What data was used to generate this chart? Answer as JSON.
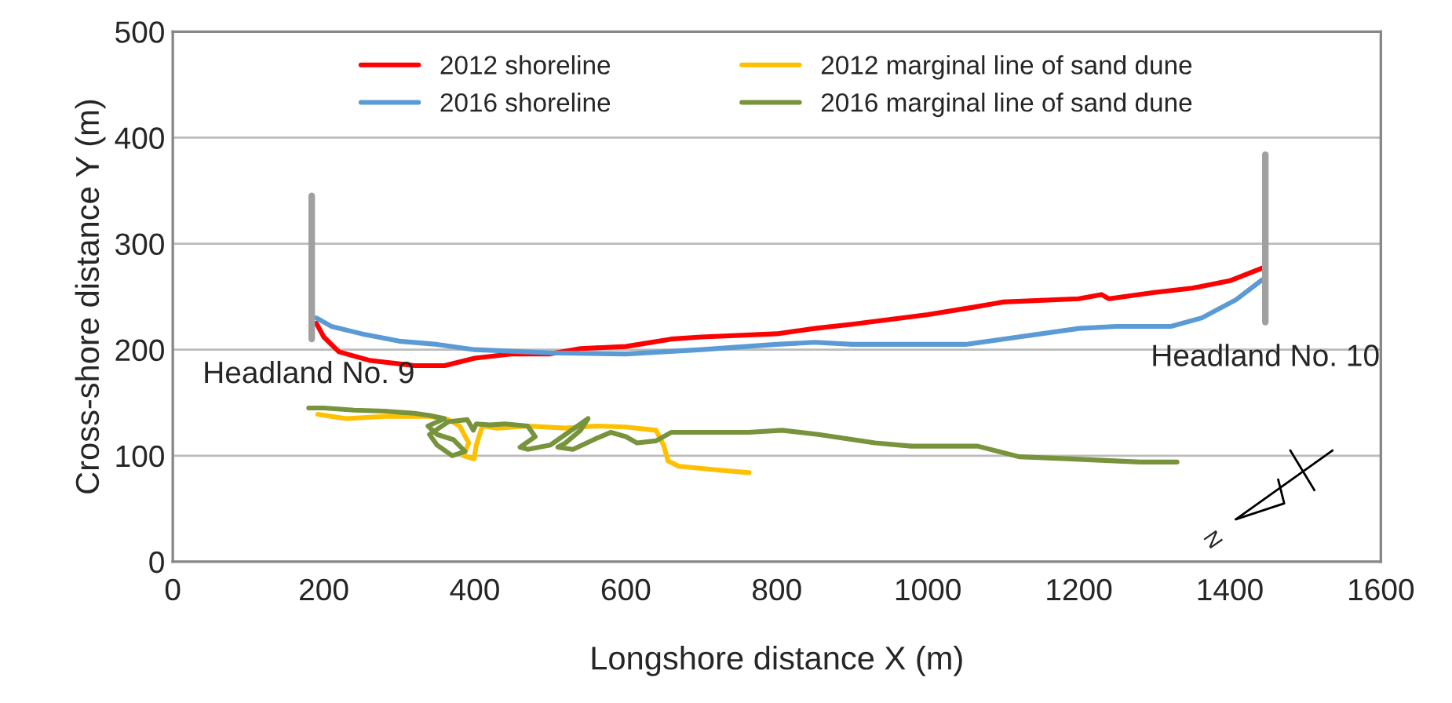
{
  "chart_data": {
    "type": "line",
    "xlabel": "Longshore distance X (m)",
    "ylabel": "Cross-shore distance Y (m)",
    "xlim": [
      0,
      1600
    ],
    "xticks": [
      0,
      200,
      400,
      600,
      800,
      1000,
      1200,
      1400,
      1600
    ],
    "ylim": [
      0,
      500
    ],
    "yticks": [
      0,
      100,
      200,
      300,
      400,
      500
    ],
    "grid": "y",
    "legend": "top",
    "marker": "none",
    "line_style": "solid",
    "series": [
      {
        "name": "2012 shoreline",
        "color": "#ff0000",
        "x": [
          190,
          200,
          220,
          260,
          320,
          360,
          400,
          450,
          500,
          540,
          600,
          660,
          700,
          800,
          850,
          900,
          1000,
          1060,
          1100,
          1200,
          1230,
          1240,
          1300,
          1350,
          1400,
          1443
        ],
        "values": [
          225,
          212,
          198,
          190,
          185,
          185,
          192,
          196,
          196,
          201,
          203,
          210,
          212,
          215,
          220,
          224,
          233,
          240,
          245,
          248,
          252,
          248,
          254,
          258,
          265,
          277
        ]
      },
      {
        "name": "2016 shoreline",
        "color": "#5b9bd5",
        "x": [
          190,
          210,
          250,
          300,
          350,
          400,
          500,
          600,
          650,
          700,
          800,
          850,
          900,
          1050,
          1100,
          1200,
          1250,
          1322,
          1363,
          1408,
          1443
        ],
        "values": [
          230,
          222,
          215,
          208,
          205,
          200,
          197,
          196,
          198,
          200,
          205,
          207,
          205,
          205,
          210,
          220,
          222,
          222,
          230,
          247,
          266
        ]
      },
      {
        "name": "2012 marginal line of sand dune",
        "color": "#ffc000",
        "x": [
          192,
          210,
          230,
          280,
          340,
          365,
          380,
          392,
          385,
          399,
          402,
          410,
          430,
          470,
          520,
          560,
          600,
          640,
          650,
          656,
          670,
          700,
          730,
          763
        ],
        "values": [
          139,
          137,
          135,
          137,
          137,
          134,
          128,
          112,
          100,
          97,
          110,
          128,
          126,
          128,
          126,
          128,
          127,
          124,
          110,
          95,
          90,
          88,
          86,
          84
        ]
      },
      {
        "name": "2016 marginal line of sand dune",
        "color": "#77933c",
        "x": [
          180,
          200,
          240,
          280,
          320,
          340,
          360,
          338,
          350,
          372,
          387,
          370,
          350,
          340,
          365,
          390,
          398,
          402,
          420,
          440,
          470,
          480,
          460,
          470,
          500,
          520,
          540,
          550,
          540,
          520,
          510,
          530,
          560,
          580,
          600,
          615,
          640,
          660,
          700,
          763,
          807,
          855,
          930,
          978,
          1066,
          1121,
          1189,
          1281,
          1330
        ],
        "values": [
          145,
          145,
          143,
          142,
          140,
          138,
          135,
          128,
          120,
          115,
          104,
          100,
          110,
          120,
          132,
          134,
          124,
          130,
          129,
          130,
          128,
          118,
          108,
          106,
          110,
          120,
          130,
          135,
          124,
          112,
          108,
          106,
          116,
          122,
          118,
          112,
          114,
          122,
          122,
          122,
          124,
          120,
          112,
          109,
          109,
          99,
          97,
          94,
          94
        ]
      },
      {
        "color": "#a0a0a0",
        "x": [
          184,
          184
        ],
        "values": [
          210,
          345
        ]
      },
      {
        "color": "#a0a0a0",
        "x": [
          1447,
          1447
        ],
        "values": [
          226,
          384
        ]
      }
    ],
    "annotations": [
      {
        "text": "Headland No. 9",
        "x": 180,
        "y": 210
      },
      {
        "text": "Headland No. 10",
        "x": 1447,
        "y": 226
      },
      "N"
    ]
  }
}
